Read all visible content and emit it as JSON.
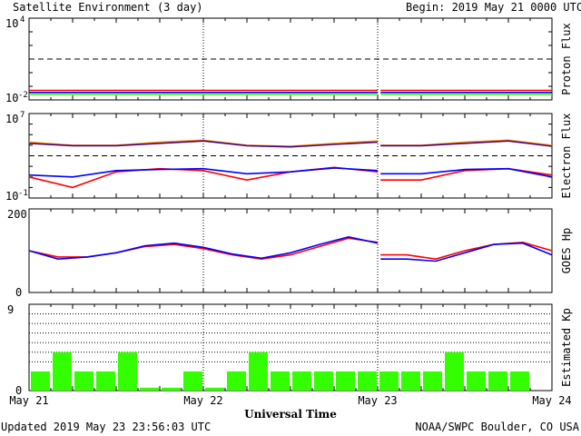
{
  "header": {
    "title": "Satellite Environment (3 day)",
    "begin_label": "Begin:  2019 May 21 0000 UTC"
  },
  "footer": {
    "updated": "Updated 2019 May 23 23:56:03 UTC",
    "credit": "NOAA/SWPC Boulder, CO USA"
  },
  "x_axis": {
    "label": "Universal Time",
    "ticks": [
      "May 21",
      "May 22",
      "May 23",
      "May 24"
    ]
  },
  "colors": {
    "red": "#ff0000",
    "blue": "#0000ff",
    "green": "#33ff00",
    "orange": "#ff9900",
    "purple": "#4b0082",
    "axis": "#000000"
  },
  "chart_data": [
    {
      "type": "line",
      "ylabel": "Proton Flux",
      "yscale": "log",
      "ylim": [
        0.01,
        10000
      ],
      "ytick_base": "10",
      "ytick_top_exp": "4",
      "ytick_bottom_exp": "-2",
      "threshold": 10,
      "x": [
        0,
        6,
        12,
        18,
        24,
        30,
        36,
        42,
        48,
        54,
        60,
        66,
        72
      ],
      "series": [
        {
          "color": "red",
          "values": [
            0.05,
            0.05,
            0.05,
            0.05,
            0.05,
            0.05,
            0.05,
            0.05,
            0.05,
            0.05,
            0.05,
            0.05,
            0.05
          ]
        },
        {
          "color": "blue",
          "values": [
            0.035,
            0.035,
            0.035,
            0.035,
            0.035,
            0.035,
            0.035,
            0.035,
            0.035,
            0.035,
            0.035,
            0.035,
            0.035
          ]
        },
        {
          "color": "green",
          "values": [
            0.025,
            0.025,
            0.025,
            0.025,
            0.025,
            0.025,
            0.025,
            0.025,
            0.025,
            0.025,
            0.025,
            0.025,
            0.025
          ]
        }
      ],
      "gap": [
        48,
        48.4
      ]
    },
    {
      "type": "line",
      "ylabel": "Electron Flux",
      "yscale": "log",
      "ylim": [
        0.1,
        10000000
      ],
      "ytick_base": "10",
      "ytick_top_exp": "7",
      "ytick_bottom_exp": "-1",
      "threshold": 1000,
      "x": [
        0,
        6,
        12,
        18,
        24,
        30,
        36,
        42,
        48,
        54,
        60,
        66,
        72
      ],
      "series": [
        {
          "color": "orange",
          "values": [
            20000,
            10000,
            10000,
            20000,
            30000,
            10000,
            8000,
            15000,
            25000,
            10000,
            20000,
            30000,
            10000
          ]
        },
        {
          "color": "purple",
          "values": [
            15000,
            9000,
            9000,
            15000,
            25000,
            9000,
            7000,
            12000,
            20000,
            9000,
            15000,
            25000,
            8000
          ]
        },
        {
          "color": "red",
          "values": [
            10,
            1,
            30,
            60,
            40,
            5,
            30,
            80,
            30,
            5,
            40,
            60,
            15
          ]
        },
        {
          "color": "blue",
          "values": [
            15,
            10,
            40,
            50,
            60,
            20,
            30,
            70,
            40,
            20,
            50,
            60,
            10
          ]
        }
      ],
      "gap": [
        48,
        48.4
      ]
    },
    {
      "type": "line",
      "ylabel": "GOES Hp",
      "ylim": [
        0,
        200
      ],
      "yticks": [
        "0",
        "200"
      ],
      "x": [
        0,
        4,
        8,
        12,
        16,
        20,
        24,
        28,
        32,
        36,
        40,
        44,
        48,
        52,
        56,
        60,
        64,
        68,
        72
      ],
      "series": [
        {
          "color": "red",
          "values": [
            100,
            85,
            85,
            95,
            110,
            115,
            105,
            90,
            80,
            90,
            110,
            130,
            120,
            90,
            80,
            100,
            115,
            120,
            100
          ]
        },
        {
          "color": "blue",
          "values": [
            100,
            80,
            85,
            95,
            112,
            118,
            108,
            92,
            82,
            95,
            115,
            133,
            118,
            80,
            75,
            95,
            115,
            118,
            90
          ]
        }
      ],
      "gap": [
        48,
        48.4
      ]
    },
    {
      "type": "bar",
      "ylabel": "Estimated Kp",
      "ylim": [
        0,
        9
      ],
      "yticks": [
        "0",
        "9"
      ],
      "grid_levels": [
        3,
        4,
        5,
        6,
        7,
        8
      ],
      "color": "green",
      "values": [
        2,
        4,
        2,
        2,
        4,
        0.3,
        0.3,
        2,
        0.3,
        2,
        4,
        2,
        2,
        2,
        2,
        2,
        2,
        2,
        2,
        4,
        2,
        2,
        2,
        0
      ]
    }
  ]
}
